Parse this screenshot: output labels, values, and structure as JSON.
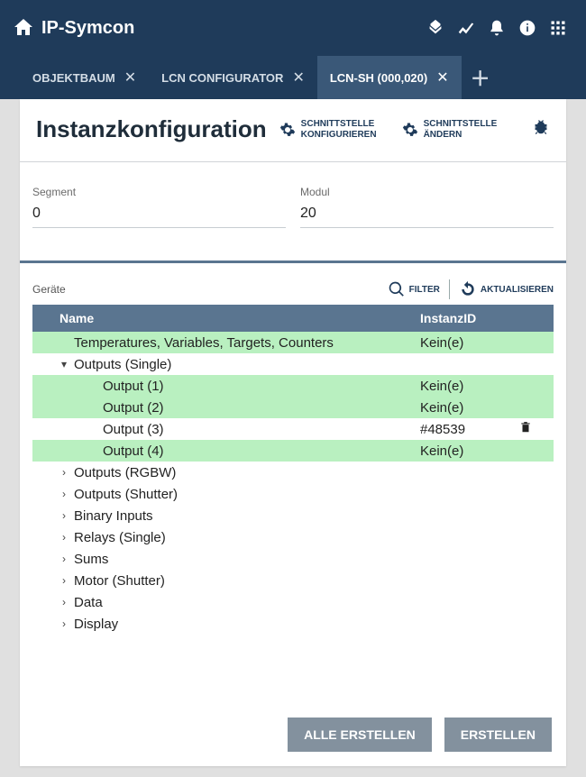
{
  "app": {
    "title": "IP-Symcon"
  },
  "tabs": {
    "items": [
      {
        "label": "OBJEKTBAUM"
      },
      {
        "label": "LCN CONFIGURATOR"
      },
      {
        "label": "LCN-SH (000,020)"
      }
    ]
  },
  "config": {
    "title": "Instanzkonfiguration",
    "action_configure_l1": "SCHNITTSTELLE",
    "action_configure_l2": "KONFIGURIEREN",
    "action_change_l1": "SCHNITTSTELLE",
    "action_change_l2": "ÄNDERN"
  },
  "fields": {
    "segment_label": "Segment",
    "segment_value": "0",
    "modul_label": "Modul",
    "modul_value": "20"
  },
  "table": {
    "label": "Geräte",
    "filter_label": "FILTER",
    "refresh_label": "AKTUALISIEREN",
    "col_name": "Name",
    "col_instance": "InstanzID"
  },
  "rows": [
    {
      "indent": 1,
      "caret": "",
      "name": "Temperatures, Variables, Targets, Counters",
      "instance": "Kein(e)",
      "green": true
    },
    {
      "indent": 1,
      "caret": "▾",
      "name": "Outputs (Single)",
      "instance": ""
    },
    {
      "indent": 3,
      "caret": "",
      "name": "Output (1)",
      "instance": "Kein(e)",
      "green": true
    },
    {
      "indent": 3,
      "caret": "",
      "name": "Output (2)",
      "instance": "Kein(e)",
      "green": true
    },
    {
      "indent": 3,
      "caret": "",
      "name": "Output (3)",
      "instance": "#48539",
      "trash": true
    },
    {
      "indent": 3,
      "caret": "",
      "name": "Output (4)",
      "instance": "Kein(e)",
      "green": true
    },
    {
      "indent": 1,
      "caret": "›",
      "name": "Outputs (RGBW)",
      "instance": ""
    },
    {
      "indent": 1,
      "caret": "›",
      "name": "Outputs (Shutter)",
      "instance": ""
    },
    {
      "indent": 1,
      "caret": "›",
      "name": "Binary Inputs",
      "instance": ""
    },
    {
      "indent": 1,
      "caret": "›",
      "name": "Relays (Single)",
      "instance": ""
    },
    {
      "indent": 1,
      "caret": "›",
      "name": "Sums",
      "instance": ""
    },
    {
      "indent": 1,
      "caret": "›",
      "name": "Motor (Shutter)",
      "instance": ""
    },
    {
      "indent": 1,
      "caret": "›",
      "name": "Data",
      "instance": ""
    },
    {
      "indent": 1,
      "caret": "›",
      "name": "Display",
      "instance": ""
    }
  ],
  "footer": {
    "create_all": "ALLE ERSTELLEN",
    "create": "ERSTELLEN"
  },
  "colors": {
    "topbar_bg": "#1f3b5a",
    "tab_active_bg": "#3a5878",
    "grid_header_bg": "#5a7590",
    "row_highlight": "#b9f0c0",
    "btn_bg": "#83919e",
    "page_bg": "#ffffff",
    "body_bg": "#e0e0e0"
  }
}
